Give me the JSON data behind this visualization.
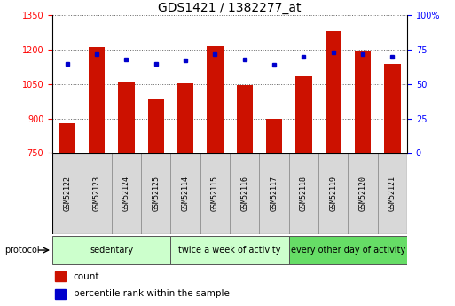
{
  "title": "GDS1421 / 1382277_at",
  "samples": [
    "GSM52122",
    "GSM52123",
    "GSM52124",
    "GSM52125",
    "GSM52114",
    "GSM52115",
    "GSM52116",
    "GSM52117",
    "GSM52118",
    "GSM52119",
    "GSM52120",
    "GSM52121"
  ],
  "counts": [
    880,
    1210,
    1060,
    985,
    1055,
    1215,
    1045,
    900,
    1085,
    1280,
    1195,
    1140
  ],
  "percentiles": [
    65,
    72,
    68,
    65,
    67,
    72,
    68,
    64,
    70,
    73,
    72,
    70
  ],
  "ylim_left": [
    750,
    1350
  ],
  "ylim_right": [
    0,
    100
  ],
  "yticks_left": [
    750,
    900,
    1050,
    1200,
    1350
  ],
  "yticks_right": [
    0,
    25,
    50,
    75,
    100
  ],
  "bar_color": "#cc1100",
  "dot_color": "#0000cc",
  "bar_bottom": 750,
  "groups": [
    {
      "label": "sedentary",
      "start": 0,
      "end": 4,
      "color": "#ccffcc"
    },
    {
      "label": "twice a week of activity",
      "start": 4,
      "end": 8,
      "color": "#ccffcc"
    },
    {
      "label": "every other day of activity",
      "start": 8,
      "end": 12,
      "color": "#66dd66"
    }
  ],
  "legend_count_label": "count",
  "legend_pct_label": "percentile rank within the sample",
  "protocol_label": "protocol",
  "title_fontsize": 10,
  "tick_fontsize": 7,
  "sample_fontsize": 6,
  "group_fontsize": 7,
  "legend_fontsize": 7.5
}
